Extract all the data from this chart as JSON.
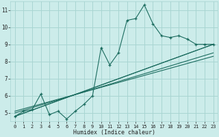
{
  "title": "",
  "xlabel": "Humidex (Indice chaleur)",
  "xlim": [
    -0.5,
    23.5
  ],
  "ylim": [
    4.5,
    11.5
  ],
  "xticks": [
    0,
    1,
    2,
    3,
    4,
    5,
    6,
    7,
    8,
    9,
    10,
    11,
    12,
    13,
    14,
    15,
    16,
    17,
    18,
    19,
    20,
    21,
    22,
    23
  ],
  "yticks": [
    5,
    6,
    7,
    8,
    9,
    10,
    11
  ],
  "bg_color": "#ccecea",
  "grid_color": "#a8d5d2",
  "line_color": "#1a6b5e",
  "main_line": [
    [
      0,
      4.8
    ],
    [
      1,
      5.1
    ],
    [
      2,
      5.2
    ],
    [
      3,
      6.1
    ],
    [
      4,
      4.9
    ],
    [
      5,
      5.1
    ],
    [
      6,
      4.65
    ],
    [
      7,
      5.1
    ],
    [
      8,
      5.5
    ],
    [
      9,
      6.0
    ],
    [
      10,
      8.8
    ],
    [
      11,
      7.8
    ],
    [
      12,
      8.5
    ],
    [
      13,
      10.4
    ],
    [
      14,
      10.5
    ],
    [
      15,
      11.3
    ],
    [
      16,
      10.2
    ],
    [
      17,
      9.5
    ],
    [
      18,
      9.4
    ],
    [
      19,
      9.5
    ],
    [
      20,
      9.3
    ],
    [
      21,
      9.0
    ],
    [
      22,
      9.0
    ],
    [
      23,
      9.0
    ]
  ],
  "straight_lines": [
    [
      [
        0,
        4.8
      ],
      [
        23,
        9.0
      ]
    ],
    [
      [
        0,
        4.8
      ],
      [
        23,
        9.0
      ]
    ],
    [
      [
        0,
        5.0
      ],
      [
        23,
        8.5
      ]
    ],
    [
      [
        0,
        5.1
      ],
      [
        23,
        8.3
      ]
    ]
  ]
}
